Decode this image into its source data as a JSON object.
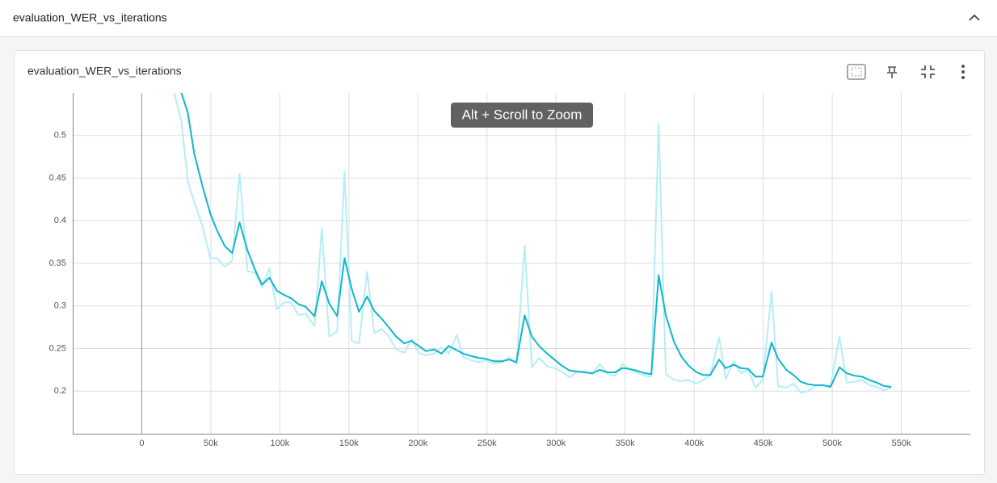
{
  "header": {
    "title": "evaluation_WER_vs_iterations"
  },
  "card": {
    "title": "evaluation_WER_vs_iterations",
    "tooltip": "Alt + Scroll to Zoom"
  },
  "chart_data": {
    "type": "line",
    "x": [
      23400,
      28700,
      33300,
      38000,
      43900,
      49700,
      54400,
      60200,
      65500,
      70800,
      76600,
      81900,
      87100,
      92400,
      97700,
      102900,
      108200,
      113500,
      118700,
      125100,
      130400,
      135700,
      141500,
      146800,
      152000,
      157300,
      163200,
      168400,
      173700,
      178900,
      184200,
      190100,
      195300,
      200600,
      205800,
      211700,
      217000,
      222200,
      228100,
      232700,
      239200,
      243900,
      249100,
      255000,
      260800,
      266100,
      271300,
      277200,
      282500,
      287700,
      293600,
      298800,
      304100,
      309900,
      315200,
      320500,
      326300,
      331600,
      337400,
      342700,
      348000,
      353200,
      358500,
      364300,
      369000,
      374300,
      379500,
      385400,
      390600,
      395900,
      401800,
      406400,
      411700,
      418100,
      422800,
      428700,
      433900,
      439200,
      444400,
      449700,
      456100,
      460800,
      466700,
      471900,
      477200,
      482500,
      487700,
      493000,
      498800,
      505300,
      510500,
      516400,
      521600,
      526900,
      532200,
      537400,
      542700
    ],
    "series": [
      {
        "color": "#b4eef4",
        "values": [
          0.55,
          0.517,
          0.446,
          0.422,
          0.394,
          0.356,
          0.356,
          0.346,
          0.353,
          0.455,
          0.341,
          0.339,
          0.322,
          0.344,
          0.296,
          0.304,
          0.304,
          0.289,
          0.291,
          0.276,
          0.391,
          0.264,
          0.27,
          0.458,
          0.259,
          0.256,
          0.34,
          0.268,
          0.273,
          0.264,
          0.249,
          0.245,
          0.261,
          0.245,
          0.242,
          0.244,
          0.251,
          0.244,
          0.266,
          0.24,
          0.236,
          0.234,
          0.236,
          0.232,
          0.234,
          0.24,
          0.232,
          0.371,
          0.228,
          0.239,
          0.229,
          0.227,
          0.223,
          0.216,
          0.223,
          0.223,
          0.22,
          0.232,
          0.22,
          0.218,
          0.232,
          0.225,
          0.222,
          0.218,
          0.217,
          0.514,
          0.22,
          0.213,
          0.212,
          0.213,
          0.209,
          0.213,
          0.219,
          0.263,
          0.214,
          0.235,
          0.221,
          0.225,
          0.204,
          0.213,
          0.317,
          0.206,
          0.204,
          0.209,
          0.198,
          0.2,
          0.206,
          0.207,
          0.206,
          0.264,
          0.21,
          0.211,
          0.213,
          0.207,
          0.205,
          0.201,
          0.204
        ]
      },
      {
        "color": "#12b5cb",
        "values": [
          0.593,
          0.55,
          0.527,
          0.479,
          0.441,
          0.408,
          0.389,
          0.37,
          0.362,
          0.398,
          0.365,
          0.343,
          0.325,
          0.333,
          0.318,
          0.313,
          0.309,
          0.302,
          0.299,
          0.288,
          0.329,
          0.303,
          0.288,
          0.356,
          0.32,
          0.293,
          0.311,
          0.294,
          0.285,
          0.275,
          0.264,
          0.256,
          0.259,
          0.253,
          0.247,
          0.249,
          0.244,
          0.253,
          0.248,
          0.244,
          0.241,
          0.239,
          0.238,
          0.235,
          0.235,
          0.237,
          0.234,
          0.289,
          0.264,
          0.253,
          0.244,
          0.237,
          0.23,
          0.224,
          0.223,
          0.222,
          0.221,
          0.225,
          0.222,
          0.222,
          0.227,
          0.226,
          0.224,
          0.221,
          0.22,
          0.336,
          0.289,
          0.258,
          0.241,
          0.23,
          0.222,
          0.219,
          0.219,
          0.237,
          0.227,
          0.231,
          0.227,
          0.226,
          0.217,
          0.217,
          0.257,
          0.238,
          0.225,
          0.219,
          0.211,
          0.208,
          0.207,
          0.207,
          0.205,
          0.228,
          0.221,
          0.218,
          0.217,
          0.213,
          0.21,
          0.206,
          0.205
        ]
      }
    ],
    "xlim": [
      -50000,
      600000
    ],
    "ylim": [
      0.15,
      0.55
    ],
    "xticks": [
      0,
      {
        "value": 50000,
        "label": "50k"
      },
      {
        "value": 100000,
        "label": "100k"
      },
      {
        "value": 150000,
        "label": "150k"
      },
      {
        "value": 200000,
        "label": "200k"
      },
      {
        "value": 250000,
        "label": "250k"
      },
      {
        "value": 300000,
        "label": "300k"
      },
      {
        "value": 350000,
        "label": "350k"
      },
      {
        "value": 400000,
        "label": "400k"
      },
      {
        "value": 450000,
        "label": "450k"
      },
      {
        "value": 500000,
        "label": "500k"
      },
      {
        "value": 550000,
        "label": "550k"
      }
    ],
    "yticks": [
      0.2,
      0.25,
      0.3,
      0.35,
      0.4,
      0.45,
      0.5
    ],
    "grid": true
  }
}
